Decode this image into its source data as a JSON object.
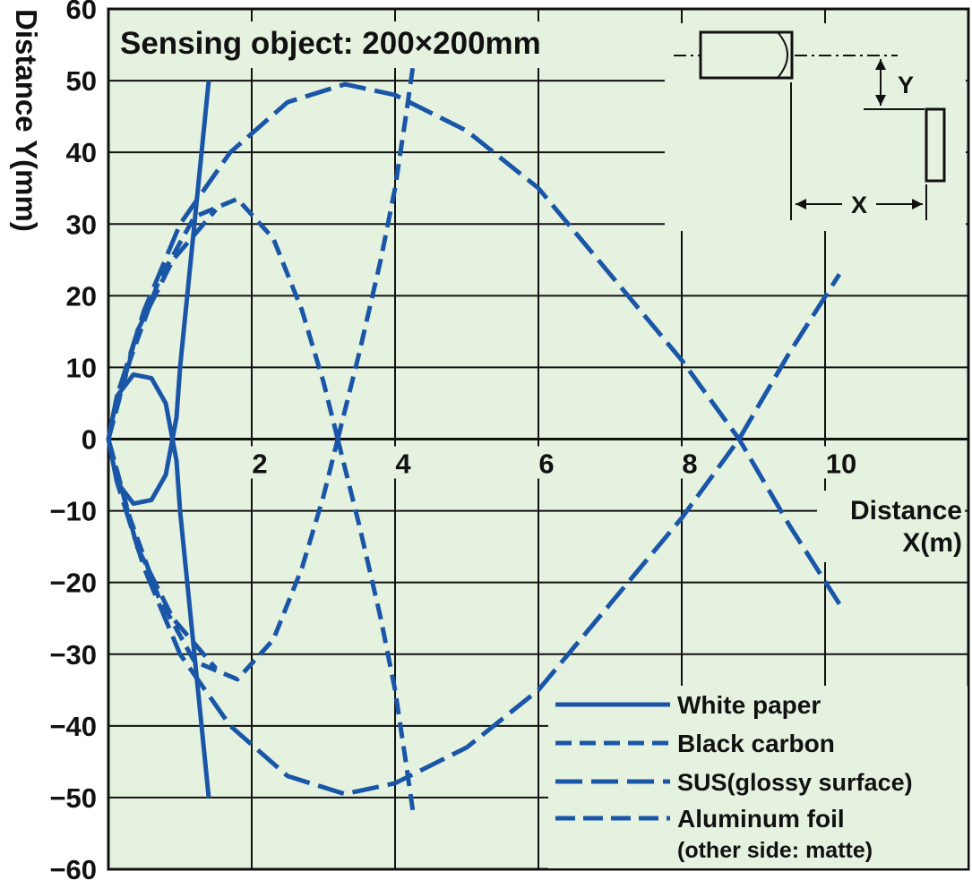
{
  "chart_data": {
    "type": "line",
    "title": "Sensing object: 200×200mm",
    "xlabel_line1": "Distance",
    "xlabel_line2": "X(m)",
    "ylabel": "Distance Y(mm)",
    "xlim": [
      0,
      12
    ],
    "ylim": [
      -60,
      60
    ],
    "x_ticks": [
      "2",
      "4",
      "6",
      "8",
      "10"
    ],
    "y_ticks": [
      "60",
      "50",
      "40",
      "30",
      "20",
      "10",
      "0",
      "−10",
      "−20",
      "−30",
      "−40",
      "−50",
      "−60"
    ],
    "grid": true,
    "legend_position": "bottom-right",
    "diagram_labels": {
      "y": "Y",
      "x": "X"
    },
    "colors": {
      "series": "#1a56a8",
      "plot_background": "#e6f2e0",
      "grid": "#111111"
    },
    "series": [
      {
        "name": "White paper",
        "dash": "solid",
        "branches": [
          [
            [
              1.4,
              50
            ],
            [
              1.3,
              40
            ],
            [
              1.2,
              30
            ],
            [
              1.1,
              20
            ],
            [
              1.0,
              10
            ],
            [
              0.95,
              3
            ],
            [
              0.8,
              -5
            ],
            [
              0.6,
              -8.5
            ],
            [
              0.35,
              -9
            ],
            [
              0.12,
              -6
            ],
            [
              0,
              0
            ],
            [
              0.12,
              6
            ],
            [
              0.35,
              9
            ],
            [
              0.6,
              8.5
            ],
            [
              0.8,
              5
            ],
            [
              0.95,
              -3
            ],
            [
              1.0,
              -10
            ],
            [
              1.1,
              -20
            ],
            [
              1.2,
              -30
            ],
            [
              1.3,
              -40
            ],
            [
              1.4,
              -50
            ]
          ]
        ]
      },
      {
        "name": "Black carbon",
        "dash": "short",
        "branches": [
          [
            [
              3.2,
              0
            ],
            [
              3.0,
              8
            ],
            [
              2.7,
              18
            ],
            [
              2.3,
              28
            ],
            [
              1.8,
              33.5
            ],
            [
              1.2,
              31
            ],
            [
              0.7,
              22
            ],
            [
              0.3,
              11
            ],
            [
              0,
              0
            ],
            [
              0.3,
              -11
            ],
            [
              0.7,
              -22
            ],
            [
              1.2,
              -31
            ],
            [
              1.8,
              -33.5
            ],
            [
              2.3,
              -28
            ],
            [
              2.7,
              -18
            ],
            [
              3.0,
              -8
            ],
            [
              3.2,
              0
            ]
          ],
          [
            [
              3.2,
              0
            ],
            [
              3.5,
              -12
            ],
            [
              3.8,
              -25
            ],
            [
              4.0,
              -35
            ],
            [
              4.15,
              -45
            ],
            [
              4.25,
              -52
            ]
          ],
          [
            [
              3.2,
              0
            ],
            [
              3.5,
              12
            ],
            [
              3.8,
              25
            ],
            [
              4.0,
              35
            ],
            [
              4.15,
              45
            ],
            [
              4.25,
              52
            ]
          ]
        ]
      },
      {
        "name": "SUS(glossy surface)",
        "dash": "long",
        "branches": [
          [
            [
              10.2,
              -23
            ],
            [
              9.5,
              -12
            ],
            [
              8.8,
              0
            ],
            [
              8.0,
              11
            ],
            [
              7.0,
              23
            ],
            [
              6.0,
              35
            ],
            [
              5.0,
              43
            ],
            [
              4.0,
              48
            ],
            [
              3.3,
              49.5
            ],
            [
              2.5,
              47
            ],
            [
              1.7,
              40
            ],
            [
              1.0,
              30
            ],
            [
              0.5,
              18
            ],
            [
              0.12,
              6
            ],
            [
              0,
              0
            ],
            [
              0.12,
              -6
            ],
            [
              0.5,
              -18
            ],
            [
              1.0,
              -30
            ],
            [
              1.7,
              -40
            ],
            [
              2.5,
              -47
            ],
            [
              3.3,
              -49.5
            ],
            [
              4.0,
              -48
            ],
            [
              5.0,
              -43
            ],
            [
              6.0,
              -35
            ],
            [
              7.0,
              -23
            ],
            [
              8.0,
              -11
            ],
            [
              8.8,
              0
            ],
            [
              9.5,
              12
            ],
            [
              10.2,
              23
            ]
          ]
        ]
      },
      {
        "name": "Aluminum foil",
        "name_note": "(other side: matte)",
        "dash": "medium",
        "branches": [
          [
            [
              0,
              0
            ],
            [
              0.4,
              15
            ],
            [
              0.9,
              25
            ],
            [
              1.5,
              32
            ]
          ],
          [
            [
              0,
              0
            ],
            [
              0.4,
              -15
            ],
            [
              0.9,
              -25
            ],
            [
              1.5,
              -32
            ]
          ]
        ]
      }
    ]
  }
}
